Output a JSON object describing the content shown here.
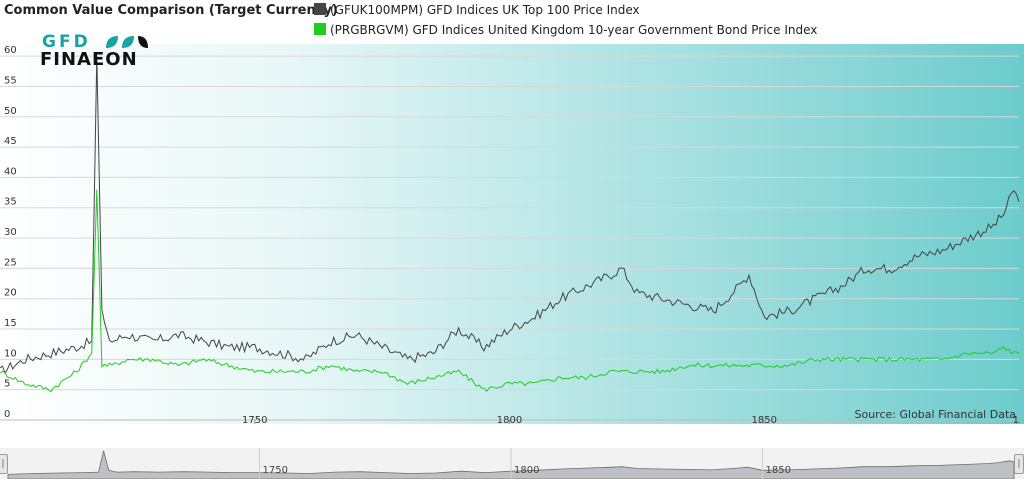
{
  "chart_data": {
    "type": "line",
    "title": "Common Value Comparison (Target Currency)",
    "series": [
      {
        "name": "(GFUK100MPM) GFD Indices UK Top 100 Price Index",
        "color": "#444444",
        "x": [
          1700,
          1705,
          1710,
          1715,
          1718,
          1719,
          1720,
          1721,
          1722,
          1725,
          1730,
          1735,
          1740,
          1745,
          1750,
          1755,
          1760,
          1765,
          1770,
          1775,
          1780,
          1785,
          1790,
          1795,
          1800,
          1805,
          1810,
          1815,
          1820,
          1822,
          1825,
          1830,
          1835,
          1840,
          1845,
          1847,
          1850,
          1855,
          1860,
          1865,
          1870,
          1875,
          1880,
          1885,
          1890,
          1895,
          1897,
          1899,
          1900
        ],
        "y": [
          8,
          10,
          11,
          12,
          13,
          60,
          18,
          14,
          13,
          14,
          13,
          14,
          13,
          12,
          12,
          11,
          10,
          13,
          14,
          12,
          10,
          11,
          15,
          12,
          15,
          17,
          20,
          22,
          24,
          25,
          21,
          20,
          19,
          18,
          22,
          24,
          17,
          18,
          20,
          22,
          25,
          25,
          27,
          28,
          30,
          32,
          34,
          38,
          36
        ]
      },
      {
        "name": "(PRGBRGVM) GFD Indices United Kingdom 10-year Government Bond Price Index",
        "color": "#22cc22",
        "x": [
          1700,
          1705,
          1710,
          1715,
          1718,
          1719,
          1720,
          1721,
          1722,
          1725,
          1730,
          1735,
          1740,
          1745,
          1750,
          1755,
          1760,
          1765,
          1770,
          1775,
          1780,
          1785,
          1790,
          1795,
          1800,
          1805,
          1810,
          1815,
          1820,
          1825,
          1830,
          1835,
          1840,
          1845,
          1850,
          1855,
          1860,
          1865,
          1870,
          1875,
          1880,
          1885,
          1890,
          1895,
          1897,
          1899,
          1900
        ],
        "y": [
          8,
          6,
          5,
          8,
          11,
          38,
          9,
          9,
          9,
          10,
          10,
          9,
          10,
          9,
          8,
          8,
          8,
          9,
          8,
          8,
          6,
          7,
          8,
          5,
          6,
          6,
          7,
          7,
          8,
          8,
          8,
          9,
          9,
          9,
          9,
          9,
          10,
          10,
          10,
          10,
          10,
          10,
          11,
          11,
          12,
          11,
          11
        ]
      }
    ],
    "x_ticks": [
      "1750",
      "1800",
      "1850",
      "1"
    ],
    "y_ticks": [
      "0",
      "5",
      "10",
      "15",
      "20",
      "25",
      "30",
      "35",
      "40",
      "45",
      "50",
      "55",
      "60"
    ],
    "ylim": [
      0,
      62
    ],
    "xlim": [
      1700,
      1900
    ],
    "legend_placement": "top",
    "grid": true,
    "navigator_ticks": [
      "1750",
      "1800",
      "1850"
    ]
  },
  "logo": {
    "top": "GFD",
    "bottom": "FINAEON"
  },
  "source": "Source: Global Financial Data",
  "navigator": {
    "left_handle": "|",
    "right_handle": "|"
  },
  "colors": {
    "background_left": "#ffffff",
    "background_right": "#6ccccc"
  }
}
